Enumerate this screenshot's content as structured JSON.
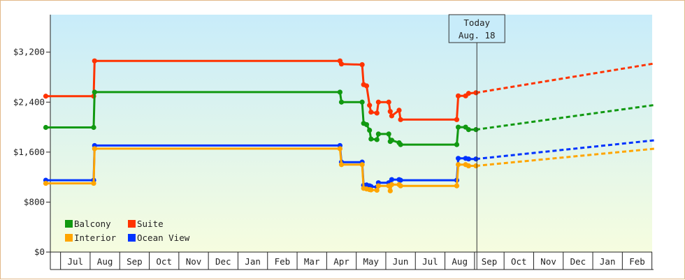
{
  "chart_data": {
    "type": "line",
    "title": "",
    "xlabel": "",
    "ylabel": "",
    "ylim": [
      0,
      3800
    ],
    "yticks": [
      0,
      800,
      1600,
      2400,
      3200
    ],
    "ytick_labels": [
      "$0",
      "$800",
      "$1,600",
      "$2,400",
      "$3,200"
    ],
    "x_unit": "months since start of June (year 1)",
    "x_range": [
      0,
      20.6
    ],
    "month_labels": [
      "Jul",
      "Aug",
      "Sep",
      "Oct",
      "Nov",
      "Dec",
      "Jan",
      "Feb",
      "Mar",
      "Apr",
      "May",
      "Jun",
      "Jul",
      "Aug",
      "Sep",
      "Oct",
      "Nov",
      "Dec",
      "Jan",
      "Feb"
    ],
    "today": {
      "line1": "Today",
      "line2": "Aug. 18",
      "x": 14.58
    },
    "legend": {
      "position": "bottom-left",
      "entries": [
        "Balcony",
        "Suite",
        "Interior",
        "Ocean View"
      ]
    },
    "colors": {
      "Balcony": "#119911",
      "Suite": "#ff3300",
      "Interior": "#ffa500",
      "Ocean View": "#0033ff",
      "bg_top": "#c8ecfa",
      "bg_bottom": "#f6fddf"
    },
    "series": [
      {
        "name": "Suite",
        "points": [
          [
            0,
            2495
          ],
          [
            1.62,
            2495
          ],
          [
            1.65,
            3060
          ],
          [
            9.95,
            3060
          ],
          [
            10.0,
            3010
          ],
          [
            10.7,
            3000
          ],
          [
            10.75,
            2680
          ],
          [
            10.85,
            2660
          ],
          [
            10.95,
            2350
          ],
          [
            11.0,
            2240
          ],
          [
            11.2,
            2225
          ],
          [
            11.25,
            2400
          ],
          [
            11.6,
            2400
          ],
          [
            11.65,
            2250
          ],
          [
            11.7,
            2180
          ],
          [
            11.95,
            2270
          ],
          [
            12.0,
            2120
          ],
          [
            13.9,
            2120
          ],
          [
            13.95,
            2500
          ],
          [
            14.2,
            2500
          ],
          [
            14.3,
            2540
          ],
          [
            14.55,
            2550
          ]
        ],
        "forecast": [
          [
            14.55,
            2550
          ],
          [
            20.6,
            3020
          ]
        ]
      },
      {
        "name": "Balcony",
        "points": [
          [
            0,
            1995
          ],
          [
            1.62,
            1995
          ],
          [
            1.65,
            2560
          ],
          [
            9.95,
            2560
          ],
          [
            10.0,
            2400
          ],
          [
            10.7,
            2400
          ],
          [
            10.75,
            2060
          ],
          [
            10.85,
            2040
          ],
          [
            10.95,
            1950
          ],
          [
            11.0,
            1810
          ],
          [
            11.2,
            1800
          ],
          [
            11.25,
            1890
          ],
          [
            11.6,
            1890
          ],
          [
            11.65,
            1770
          ],
          [
            11.7,
            1790
          ],
          [
            11.95,
            1750
          ],
          [
            12.0,
            1720
          ],
          [
            13.9,
            1720
          ],
          [
            13.95,
            2000
          ],
          [
            14.2,
            2000
          ],
          [
            14.3,
            1960
          ],
          [
            14.55,
            1960
          ]
        ],
        "forecast": [
          [
            14.55,
            1960
          ],
          [
            20.6,
            2355
          ]
        ]
      },
      {
        "name": "Ocean View",
        "points": [
          [
            0,
            1150
          ],
          [
            1.62,
            1150
          ],
          [
            1.65,
            1705
          ],
          [
            9.95,
            1705
          ],
          [
            10.0,
            1440
          ],
          [
            10.7,
            1440
          ],
          [
            10.75,
            1070
          ],
          [
            10.85,
            1075
          ],
          [
            10.95,
            1060
          ],
          [
            11.0,
            1050
          ],
          [
            11.2,
            1040
          ],
          [
            11.25,
            1110
          ],
          [
            11.6,
            1110
          ],
          [
            11.65,
            1070
          ],
          [
            11.7,
            1160
          ],
          [
            11.95,
            1160
          ],
          [
            12.0,
            1150
          ],
          [
            13.9,
            1150
          ],
          [
            13.95,
            1500
          ],
          [
            14.2,
            1500
          ],
          [
            14.3,
            1490
          ],
          [
            14.55,
            1490
          ]
        ],
        "forecast": [
          [
            14.55,
            1490
          ],
          [
            20.6,
            1790
          ]
        ]
      },
      {
        "name": "Interior",
        "points": [
          [
            0,
            1100
          ],
          [
            1.62,
            1100
          ],
          [
            1.65,
            1655
          ],
          [
            9.95,
            1655
          ],
          [
            10.0,
            1400
          ],
          [
            10.7,
            1400
          ],
          [
            10.75,
            1020
          ],
          [
            10.85,
            1010
          ],
          [
            10.95,
            1000
          ],
          [
            11.0,
            995
          ],
          [
            11.2,
            990
          ],
          [
            11.25,
            1060
          ],
          [
            11.6,
            1060
          ],
          [
            11.65,
            980
          ],
          [
            11.7,
            1080
          ],
          [
            11.95,
            1080
          ],
          [
            12.0,
            1060
          ],
          [
            13.9,
            1060
          ],
          [
            13.95,
            1400
          ],
          [
            14.2,
            1400
          ],
          [
            14.3,
            1380
          ],
          [
            14.55,
            1380
          ]
        ],
        "forecast": [
          [
            14.55,
            1380
          ],
          [
            20.6,
            1655
          ]
        ]
      }
    ]
  }
}
